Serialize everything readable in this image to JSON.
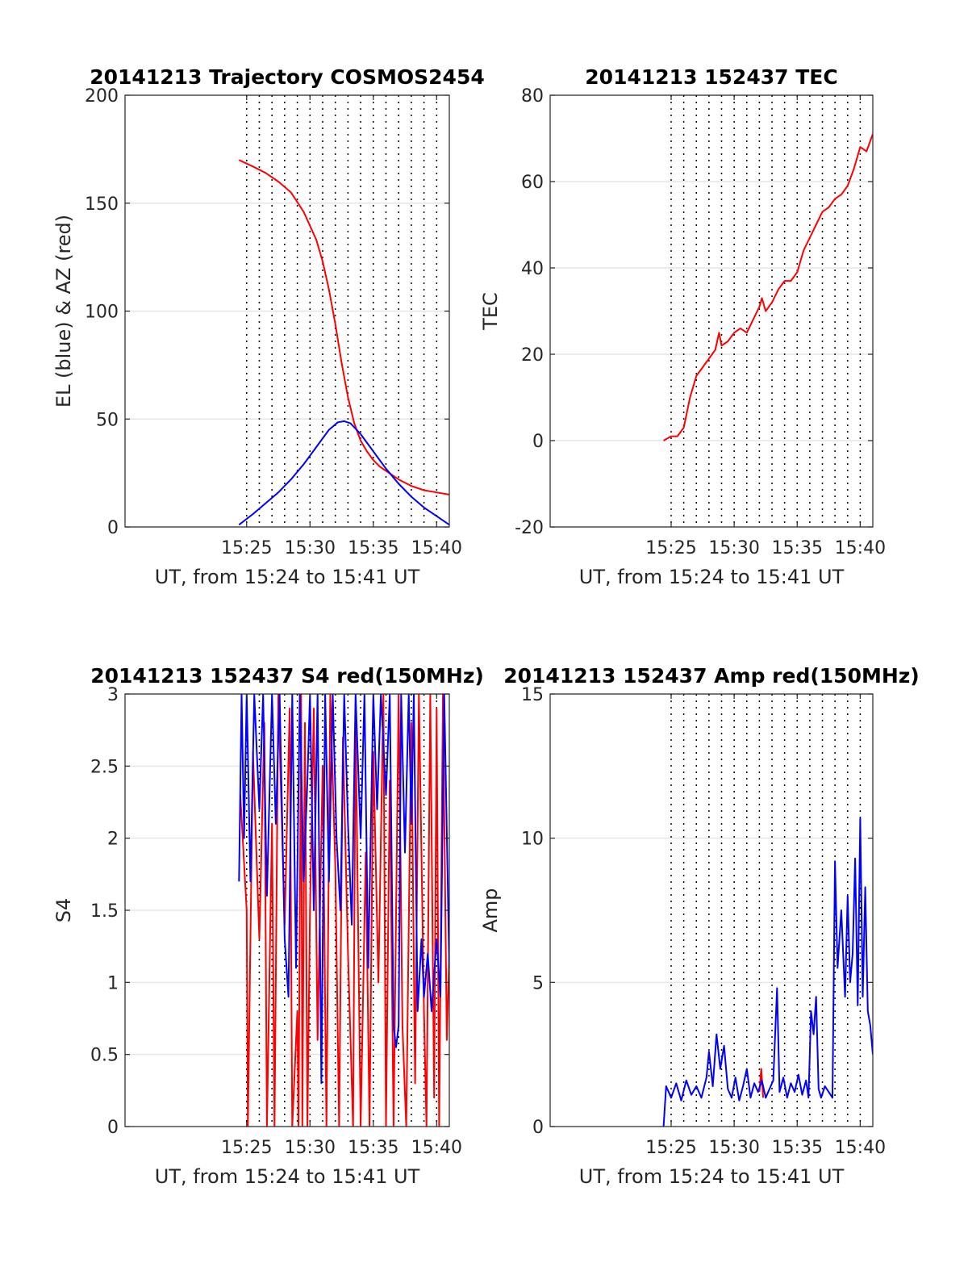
{
  "chart_data": [
    {
      "type": "line",
      "title": "20141213 Trajectory COSMOS2454",
      "xlabel": "UT, from 15:24 to 15:41 UT",
      "ylabel": "EL (blue) & AZ (red)",
      "xlim": [
        15.4,
        41.0
      ],
      "ylim": [
        0,
        200
      ],
      "x_ticks": [
        25,
        30,
        35,
        40
      ],
      "x_tick_labels": [
        "15:25",
        "15:30",
        "15:35",
        "15:40"
      ],
      "y_ticks": [
        0,
        50,
        100,
        150,
        200
      ],
      "y_tick_labels": [
        "0",
        "50",
        "100",
        "150",
        "200"
      ],
      "grid": true,
      "series": [
        {
          "color": "#ff0000",
          "x": [
            24.4,
            25.5,
            26.5,
            27.5,
            28.5,
            29.5,
            30.5,
            31.0,
            31.5,
            32.0,
            32.5,
            33.0,
            33.5,
            34.0,
            34.5,
            35.0,
            35.5,
            36.0,
            37.0,
            38.0,
            39.0,
            40.0,
            41.0
          ],
          "y": [
            170,
            167,
            164,
            160,
            155,
            146,
            133,
            123,
            110,
            94,
            76,
            60,
            48,
            40,
            35,
            31,
            28,
            26,
            22,
            19,
            17,
            16,
            15
          ]
        },
        {
          "color": "#0000ff",
          "x": [
            24.4,
            25.5,
            26.5,
            27.5,
            28.5,
            29.5,
            30.5,
            31.5,
            32.2,
            32.7,
            33.2,
            34.0,
            35.0,
            36.0,
            37.0,
            38.0,
            39.0,
            40.0,
            41.0
          ],
          "y": [
            1,
            6,
            11,
            16,
            22,
            29,
            37,
            45,
            48.5,
            49,
            48,
            43,
            35,
            27,
            20,
            14,
            9,
            5,
            1
          ]
        }
      ]
    },
    {
      "type": "line",
      "title": "20141213 152437 TEC",
      "xlabel": "UT, from 15:24 to 15:41 UT",
      "ylabel": "TEC",
      "xlim": [
        15.4,
        41.0
      ],
      "ylim": [
        -20,
        80
      ],
      "x_ticks": [
        25,
        30,
        35,
        40
      ],
      "x_tick_labels": [
        "15:25",
        "15:30",
        "15:35",
        "15:40"
      ],
      "y_ticks": [
        -20,
        0,
        20,
        40,
        60,
        80
      ],
      "y_tick_labels": [
        "-20",
        "0",
        "20",
        "40",
        "60",
        "80"
      ],
      "grid": true,
      "series": [
        {
          "color": "#ff0000",
          "x": [
            24.4,
            25.0,
            25.5,
            26.0,
            26.5,
            27.0,
            27.5,
            28.0,
            28.5,
            28.8,
            29.0,
            29.5,
            30.0,
            30.5,
            31.0,
            31.5,
            32.0,
            32.2,
            32.5,
            33.0,
            33.5,
            34.0,
            34.5,
            35.0,
            35.5,
            36.0,
            36.5,
            37.0,
            37.5,
            38.0,
            38.5,
            39.0,
            39.5,
            40.0,
            40.5,
            41.0
          ],
          "y": [
            0,
            1,
            1,
            3,
            10,
            15,
            17,
            19,
            21,
            25,
            22,
            23,
            25,
            26,
            25,
            28,
            31,
            33,
            30,
            32,
            35,
            37,
            37,
            39,
            44,
            47,
            50,
            53,
            54,
            56,
            57,
            59,
            63,
            68,
            67,
            71
          ]
        }
      ]
    },
    {
      "type": "line",
      "title": "20141213 152437 S4 red(150MHz)",
      "xlabel": "UT, from 15:24 to 15:41 UT",
      "ylabel": "S4",
      "xlim": [
        15.4,
        41.0
      ],
      "ylim": [
        0,
        3
      ],
      "x_ticks": [
        25,
        30,
        35,
        40
      ],
      "x_tick_labels": [
        "15:25",
        "15:30",
        "15:35",
        "15:40"
      ],
      "y_ticks": [
        0,
        0.5,
        1,
        1.5,
        2,
        2.5,
        3
      ],
      "y_tick_labels": [
        "0",
        "0.5",
        "1",
        "1.5",
        "2",
        "2.5",
        "3"
      ],
      "grid": true,
      "series": [
        {
          "color": "#ff0000",
          "x": [
            24.5,
            25.0,
            25.1,
            25.5,
            26.0,
            26.4,
            26.6,
            27.0,
            27.2,
            27.5,
            28.0,
            28.4,
            28.6,
            29.0,
            29.1,
            29.3,
            29.4,
            29.6,
            29.8,
            30.0,
            30.3,
            30.6,
            31.0,
            31.3,
            31.6,
            32.0,
            32.3,
            32.6,
            33.0,
            33.4,
            33.6,
            34.0,
            34.4,
            34.7,
            35.0,
            35.4,
            35.8,
            36.0,
            36.3,
            36.6,
            37.0,
            37.3,
            37.6,
            38.0,
            38.3,
            38.6,
            39.0,
            39.2,
            39.5,
            39.8,
            40.0,
            40.2,
            40.5,
            40.8,
            41.0
          ],
          "y": [
            2.3,
            1.5,
            0,
            2.6,
            1.3,
            2.8,
            0,
            2.1,
            0,
            3.0,
            1.4,
            2.9,
            0,
            0.8,
            0,
            3.0,
            0,
            2.8,
            0,
            1.5,
            2.9,
            0.6,
            2.5,
            0,
            3.0,
            1.8,
            0,
            2.7,
            1.2,
            0,
            2.8,
            0,
            1.9,
            0,
            2.6,
            1.0,
            3.0,
            0,
            2.4,
            0,
            3.0,
            0.7,
            0,
            2.8,
            0.3,
            3.0,
            0.8,
            0,
            3.0,
            0.2,
            2.9,
            0,
            3.0,
            0.6,
            1.2
          ]
        },
        {
          "color": "#0000ff",
          "x": [
            24.4,
            24.6,
            24.8,
            25.0,
            25.3,
            25.6,
            26.0,
            26.3,
            26.6,
            27.0,
            27.3,
            27.6,
            28.0,
            28.3,
            28.6,
            28.9,
            29.2,
            29.5,
            29.8,
            30.0,
            30.3,
            30.6,
            30.9,
            31.2,
            31.5,
            31.8,
            32.1,
            32.4,
            32.7,
            33.0,
            33.3,
            33.6,
            34.0,
            34.3,
            34.6,
            35.0,
            35.3,
            35.6,
            36.0,
            36.3,
            36.6,
            36.8,
            37.0,
            37.2,
            37.5,
            37.8,
            38.0,
            38.2,
            38.5,
            38.8,
            39.0,
            39.3,
            39.6,
            40.0,
            40.3,
            40.6,
            41.0
          ],
          "y": [
            1.7,
            3.0,
            2.0,
            3.0,
            1.7,
            3.0,
            2.2,
            3.0,
            1.6,
            3.0,
            2.1,
            3.0,
            1.3,
            0.9,
            3.0,
            1.1,
            3.0,
            1.7,
            2.4,
            3.0,
            1.5,
            3.0,
            0.3,
            3.0,
            1.7,
            3.0,
            2.0,
            1.5,
            3.0,
            2.1,
            1.4,
            3.0,
            2.0,
            3.0,
            1.1,
            3.0,
            2.2,
            3.0,
            2.3,
            3.0,
            0.7,
            0.55,
            0.7,
            3.0,
            1.9,
            3.0,
            2.1,
            3.0,
            0.8,
            1.3,
            0.9,
            1.2,
            0.8,
            1.3,
            0.9,
            3.0,
            1.1
          ]
        }
      ]
    },
    {
      "type": "line",
      "title": "20141213 152437 Amp red(150MHz)",
      "xlabel": "UT, from 15:24 to 15:41 UT",
      "ylabel": "Amp",
      "xlim": [
        15.4,
        41.0
      ],
      "ylim": [
        0,
        15
      ],
      "x_ticks": [
        25,
        30,
        35,
        40
      ],
      "x_tick_labels": [
        "15:25",
        "15:30",
        "15:35",
        "15:40"
      ],
      "y_ticks": [
        0,
        5,
        10,
        15
      ],
      "y_tick_labels": [
        "0",
        "5",
        "10",
        "15"
      ],
      "grid": true,
      "series": [
        {
          "color": "#ff0000",
          "x": [
            32.0,
            32.15,
            32.3
          ],
          "y": [
            1.2,
            2.0,
            1.0
          ]
        },
        {
          "color": "#0000ff",
          "x": [
            24.4,
            24.6,
            25.0,
            25.4,
            25.8,
            26.2,
            26.6,
            27.0,
            27.4,
            27.8,
            28.0,
            28.3,
            28.6,
            28.9,
            29.2,
            29.5,
            29.8,
            30.1,
            30.4,
            30.7,
            31.0,
            31.3,
            31.6,
            31.9,
            32.2,
            32.5,
            32.8,
            33.1,
            33.4,
            33.6,
            33.9,
            34.2,
            34.5,
            34.8,
            35.1,
            35.4,
            35.7,
            35.9,
            36.1,
            36.3,
            36.5,
            36.7,
            36.9,
            37.2,
            37.5,
            37.8,
            38.0,
            38.2,
            38.5,
            38.8,
            39.0,
            39.2,
            39.4,
            39.6,
            39.8,
            40.0,
            40.2,
            40.4,
            40.6,
            40.8,
            41.0
          ],
          "y": [
            0,
            1.4,
            1.0,
            1.5,
            0.9,
            1.6,
            1.1,
            1.4,
            1.0,
            1.7,
            2.6,
            1.4,
            3.2,
            2.0,
            2.8,
            1.3,
            1.0,
            1.7,
            0.9,
            1.4,
            2.0,
            1.0,
            1.5,
            1.2,
            1.6,
            1.0,
            1.3,
            1.6,
            4.8,
            1.2,
            1.7,
            1.0,
            1.5,
            1.2,
            1.8,
            1.1,
            1.6,
            1.0,
            4.0,
            3.2,
            4.5,
            1.3,
            1.0,
            1.4,
            1.2,
            1.0,
            9.2,
            5.5,
            7.5,
            4.5,
            8.0,
            5.0,
            6.0,
            9.3,
            4.2,
            10.7,
            4.5,
            8.3,
            4.0,
            3.5,
            2.5
          ]
        }
      ]
    }
  ]
}
